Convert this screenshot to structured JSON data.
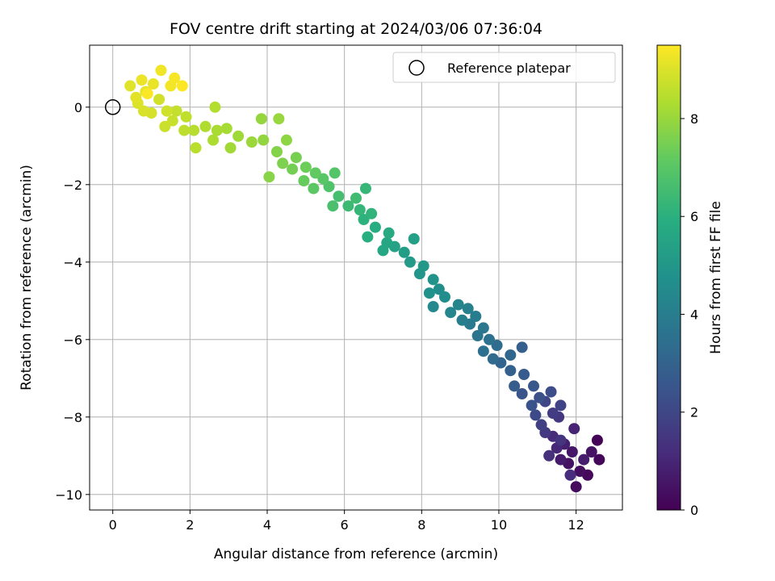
{
  "chart_data": {
    "type": "scatter",
    "title": "FOV centre drift starting at 2024/03/06 07:36:04",
    "xlabel": "Angular distance from reference (arcmin)",
    "ylabel": "Rotation from reference (arcmin)",
    "xlim": [
      -0.6,
      13.2
    ],
    "ylim": [
      -10.4,
      1.6
    ],
    "xticks": [
      0,
      2,
      4,
      6,
      8,
      10,
      12
    ],
    "yticks": [
      0,
      -2,
      -4,
      -6,
      -8,
      -10
    ],
    "grid": true,
    "legend": {
      "placement": "top-right",
      "entries": [
        "Reference platepar"
      ]
    },
    "reference_point": {
      "x": 0,
      "y": 0
    },
    "colorbar": {
      "label": "Hours from first FF file",
      "range": [
        0,
        9.5
      ],
      "ticks": [
        0,
        2,
        4,
        6,
        8
      ],
      "colormap": "viridis"
    },
    "series": [
      {
        "color_by": "hours",
        "points": [
          [
            12.55,
            -8.6,
            0.1
          ],
          [
            12.6,
            -9.1,
            0.15
          ],
          [
            12.3,
            -9.5,
            0.2
          ],
          [
            12.0,
            -9.8,
            0.3
          ],
          [
            12.1,
            -9.4,
            0.35
          ],
          [
            11.8,
            -9.2,
            0.45
          ],
          [
            12.4,
            -8.9,
            0.5
          ],
          [
            11.9,
            -8.9,
            0.6
          ],
          [
            11.6,
            -9.1,
            0.7
          ],
          [
            12.2,
            -9.1,
            0.75
          ],
          [
            11.7,
            -8.7,
            0.85
          ],
          [
            11.95,
            -8.3,
            0.95
          ],
          [
            11.5,
            -8.8,
            1.05
          ],
          [
            11.4,
            -8.5,
            1.15
          ],
          [
            11.85,
            -9.5,
            1.2
          ],
          [
            11.3,
            -9.0,
            1.3
          ],
          [
            11.6,
            -8.6,
            1.4
          ],
          [
            11.55,
            -8.0,
            1.5
          ],
          [
            11.2,
            -8.4,
            1.6
          ],
          [
            11.4,
            -7.9,
            1.7
          ],
          [
            11.1,
            -8.2,
            1.8
          ],
          [
            11.6,
            -7.7,
            1.9
          ],
          [
            11.2,
            -7.6,
            2.0
          ],
          [
            10.95,
            -7.95,
            2.1
          ],
          [
            11.35,
            -7.35,
            2.2
          ],
          [
            11.05,
            -7.5,
            2.3
          ],
          [
            10.85,
            -7.7,
            2.4
          ],
          [
            10.6,
            -7.4,
            2.5
          ],
          [
            10.9,
            -7.2,
            2.6
          ],
          [
            10.65,
            -6.9,
            2.7
          ],
          [
            10.4,
            -7.2,
            2.8
          ],
          [
            10.6,
            -6.2,
            2.85
          ],
          [
            10.3,
            -6.8,
            2.95
          ],
          [
            10.05,
            -6.6,
            3.05
          ],
          [
            10.3,
            -6.4,
            3.15
          ],
          [
            9.85,
            -6.5,
            3.25
          ],
          [
            9.95,
            -6.15,
            3.35
          ],
          [
            9.6,
            -6.3,
            3.45
          ],
          [
            9.75,
            -6.0,
            3.55
          ],
          [
            9.45,
            -5.9,
            3.65
          ],
          [
            9.6,
            -5.7,
            3.75
          ],
          [
            9.25,
            -5.6,
            3.85
          ],
          [
            9.4,
            -5.4,
            3.95
          ],
          [
            9.05,
            -5.5,
            4.05
          ],
          [
            9.2,
            -5.2,
            4.15
          ],
          [
            8.95,
            -5.1,
            4.25
          ],
          [
            8.75,
            -5.3,
            4.35
          ],
          [
            8.3,
            -5.15,
            4.45
          ],
          [
            8.6,
            -4.9,
            4.55
          ],
          [
            8.45,
            -4.7,
            4.65
          ],
          [
            8.2,
            -4.8,
            4.75
          ],
          [
            8.3,
            -4.45,
            4.85
          ],
          [
            7.95,
            -4.3,
            4.95
          ],
          [
            8.05,
            -4.1,
            5.05
          ],
          [
            7.7,
            -4.0,
            5.15
          ],
          [
            7.55,
            -3.75,
            5.25
          ],
          [
            7.8,
            -3.4,
            5.35
          ],
          [
            7.3,
            -3.6,
            5.45
          ],
          [
            7.1,
            -3.5,
            5.55
          ],
          [
            7.0,
            -3.7,
            5.65
          ],
          [
            7.15,
            -3.25,
            5.75
          ],
          [
            6.8,
            -3.1,
            5.85
          ],
          [
            6.6,
            -3.35,
            5.95
          ],
          [
            6.5,
            -2.9,
            6.05
          ],
          [
            6.7,
            -2.75,
            6.15
          ],
          [
            6.4,
            -2.65,
            6.25
          ],
          [
            6.55,
            -2.1,
            6.3
          ],
          [
            6.1,
            -2.55,
            6.4
          ],
          [
            6.3,
            -2.35,
            6.5
          ],
          [
            5.85,
            -2.3,
            6.6
          ],
          [
            5.7,
            -2.55,
            6.7
          ],
          [
            5.6,
            -2.05,
            6.8
          ],
          [
            5.75,
            -1.7,
            6.9
          ],
          [
            5.45,
            -1.85,
            7.0
          ],
          [
            5.2,
            -2.1,
            7.05
          ],
          [
            5.25,
            -1.7,
            7.15
          ],
          [
            4.95,
            -1.9,
            7.25
          ],
          [
            5.0,
            -1.55,
            7.35
          ],
          [
            4.65,
            -1.6,
            7.45
          ],
          [
            4.75,
            -1.3,
            7.5
          ],
          [
            4.4,
            -1.45,
            7.6
          ],
          [
            4.25,
            -1.15,
            7.7
          ],
          [
            4.05,
            -1.8,
            7.75
          ],
          [
            4.5,
            -0.85,
            7.85
          ],
          [
            3.9,
            -0.85,
            7.9
          ],
          [
            3.85,
            -0.3,
            7.95
          ],
          [
            4.3,
            -0.3,
            8.0
          ],
          [
            3.6,
            -0.9,
            8.05
          ],
          [
            3.25,
            -0.75,
            8.1
          ],
          [
            3.05,
            -1.05,
            8.15
          ],
          [
            2.95,
            -0.55,
            8.2
          ],
          [
            2.7,
            -0.6,
            8.25
          ],
          [
            2.6,
            -0.85,
            8.3
          ],
          [
            2.4,
            -0.5,
            8.35
          ],
          [
            2.65,
            0.0,
            8.4
          ],
          [
            2.1,
            -0.6,
            8.45
          ],
          [
            2.15,
            -1.05,
            8.5
          ],
          [
            1.85,
            -0.6,
            8.55
          ],
          [
            1.9,
            -0.25,
            8.6
          ],
          [
            1.65,
            -0.1,
            8.65
          ],
          [
            1.55,
            -0.35,
            8.7
          ],
          [
            1.35,
            -0.5,
            8.75
          ],
          [
            1.4,
            -0.1,
            8.8
          ],
          [
            1.2,
            0.2,
            8.85
          ],
          [
            1.0,
            -0.15,
            8.9
          ],
          [
            0.8,
            -0.1,
            8.95
          ],
          [
            0.65,
            0.1,
            9.0
          ],
          [
            0.45,
            0.55,
            9.05
          ],
          [
            0.6,
            0.25,
            9.1
          ],
          [
            0.85,
            0.4,
            9.15
          ],
          [
            1.05,
            0.6,
            9.2
          ],
          [
            0.75,
            0.7,
            9.25
          ],
          [
            1.25,
            0.95,
            9.3
          ],
          [
            1.5,
            0.55,
            9.35
          ],
          [
            1.6,
            0.75,
            9.4
          ],
          [
            0.9,
            0.35,
            9.45
          ],
          [
            1.8,
            0.55,
            9.5
          ]
        ]
      }
    ]
  }
}
